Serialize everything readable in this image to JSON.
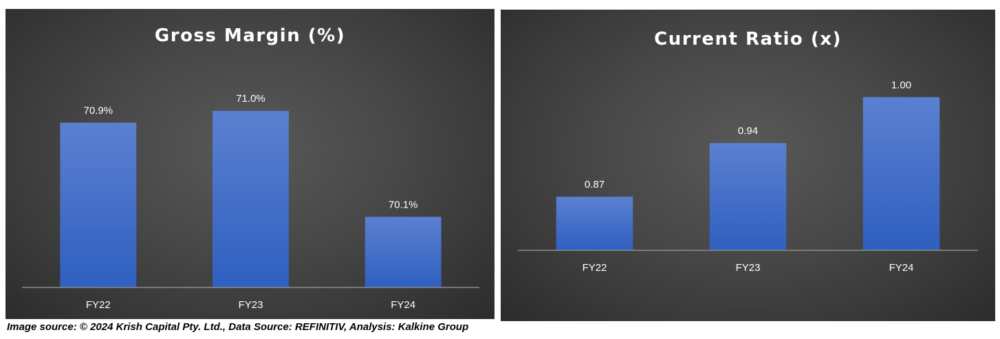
{
  "chart_data": [
    {
      "type": "bar",
      "title": "Gross Margin (%)",
      "categories": [
        "FY22",
        "FY23",
        "FY24"
      ],
      "values": [
        70.9,
        71.0,
        70.1
      ],
      "data_labels": [
        "70.9%",
        "71.0%",
        "70.1%"
      ],
      "ylim": [
        69.5,
        71.2
      ],
      "grid": false,
      "colors": {
        "bar_top": "#5b80d0",
        "bar_bottom": "#2f5fc0",
        "axis": "#8c8c8c",
        "text": "#ffffff"
      }
    },
    {
      "type": "bar",
      "title": "Current Ratio (x)",
      "categories": [
        "FY22",
        "FY23",
        "FY24"
      ],
      "values": [
        0.87,
        0.94,
        1.0
      ],
      "data_labels": [
        "0.87",
        "0.94",
        "1.00"
      ],
      "ylim": [
        0.8,
        1.02
      ],
      "grid": false,
      "colors": {
        "bar_top": "#5b80d0",
        "bar_bottom": "#2f5fc0",
        "axis": "#8c8c8c",
        "text": "#ffffff"
      }
    }
  ],
  "footer": "Image source: © 2024 Krish Capital Pty. Ltd., Data Source: REFINITIV, Analysis: Kalkine Group"
}
